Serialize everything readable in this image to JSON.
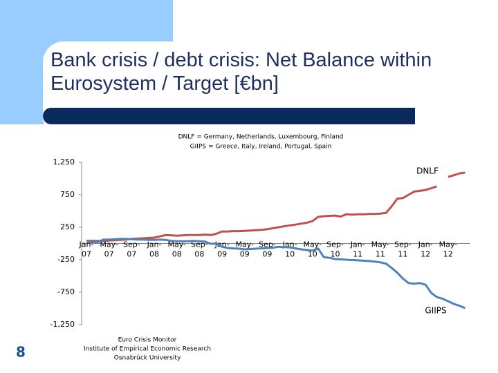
{
  "slide_number": "8",
  "chart_data": {
    "type": "line",
    "title": "Bank crisis / debt crisis: Net Balance within Eurosystem / Target [€bn]",
    "notes": [
      "DNLF = Germany, Netherlands, Luxembourg, Finland",
      "GIIPS = Greece, Italy, Ireland, Portugal, Spain"
    ],
    "annotations": [
      "DNLF",
      "GIIPS"
    ],
    "source": [
      "Euro Crisis Monitor",
      "Institute of Empirical Economic Research",
      "Osnabrück University"
    ],
    "categories": [
      "Jan-07",
      null,
      null,
      null,
      "May-07",
      null,
      null,
      null,
      "Sep-07",
      null,
      null,
      null,
      "Jan-08",
      null,
      null,
      null,
      "May-08",
      null,
      null,
      null,
      "Sep-08",
      null,
      null,
      null,
      "Jan-09",
      null,
      null,
      null,
      "May-09",
      null,
      null,
      null,
      "Sep-09",
      null,
      null,
      null,
      "Jan-10",
      null,
      null,
      null,
      "May-10",
      null,
      null,
      null,
      "Sep-10",
      null,
      null,
      null,
      "Jan-11",
      null,
      null,
      null,
      "May-11",
      null,
      null,
      null,
      "Sep-11",
      null,
      null,
      null,
      "Jan-12",
      null,
      null,
      null,
      "May-12",
      null,
      null,
      null
    ],
    "series": [
      {
        "name": "DNLF",
        "color": "#c0504d",
        "values": [
          40,
          40,
          40,
          40,
          45,
          50,
          55,
          60,
          70,
          75,
          80,
          85,
          90,
          110,
          130,
          125,
          120,
          125,
          130,
          130,
          130,
          135,
          130,
          150,
          185,
          185,
          190,
          190,
          195,
          200,
          205,
          210,
          220,
          235,
          250,
          265,
          280,
          290,
          305,
          320,
          345,
          410,
          420,
          425,
          430,
          415,
          450,
          445,
          450,
          450,
          455,
          455,
          460,
          470,
          570,
          690,
          700,
          750,
          800,
          810,
          825,
          850,
          880,
          null,
          1025,
          1050,
          1080,
          1090
        ]
      },
      {
        "name": "GIIPS",
        "color": "#4f81bd",
        "values": [
          20,
          20,
          20,
          60,
          60,
          65,
          70,
          70,
          65,
          60,
          60,
          55,
          55,
          60,
          55,
          40,
          35,
          35,
          35,
          40,
          35,
          30,
          -5,
          0,
          -50,
          -70,
          -75,
          -80,
          -90,
          -85,
          -80,
          -75,
          -70,
          -65,
          -50,
          -55,
          -60,
          -75,
          -90,
          -100,
          -110,
          -80,
          -210,
          -220,
          -240,
          -245,
          -250,
          -255,
          -260,
          -265,
          -270,
          -280,
          -290,
          -310,
          -375,
          -450,
          -540,
          -610,
          -620,
          -610,
          -635,
          -760,
          -825,
          -850,
          -890,
          -930,
          -960,
          -995
        ]
      }
    ],
    "ylim": [
      -1250,
      1250
    ],
    "yticks": [
      {
        "value": 1250,
        "label": "1,250"
      },
      750,
      250,
      -250,
      -750,
      {
        "value": -1250,
        "label": "-1,250"
      }
    ],
    "grid": false
  }
}
